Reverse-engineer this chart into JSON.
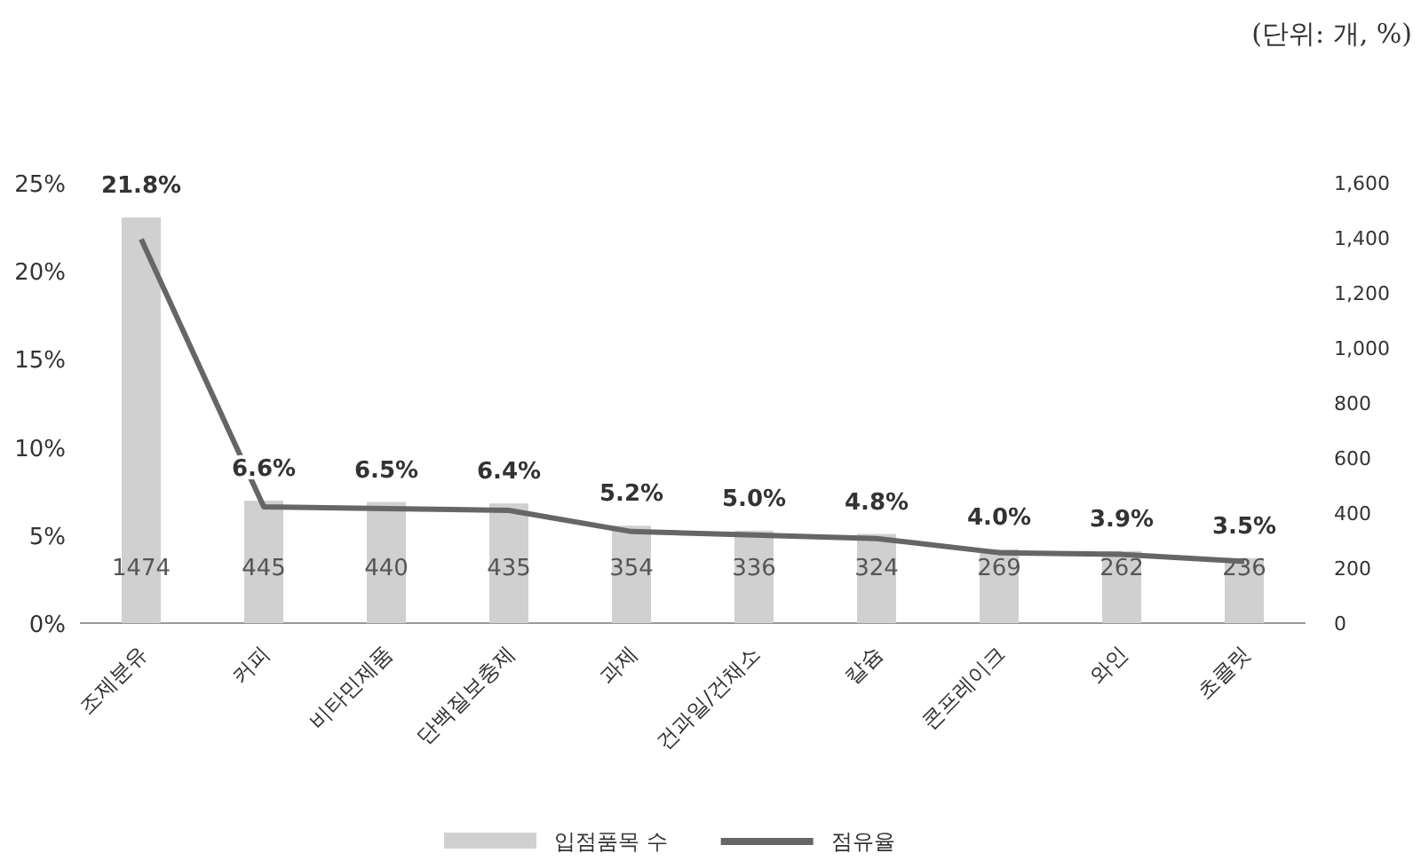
{
  "chart_data": {
    "type": "bar",
    "categories": [
      "조제분유",
      "커피",
      "비타민제품",
      "단백질보충제",
      "과제",
      "건과일/건채소",
      "칼슘",
      "콘프레이크",
      "와인",
      "초콜릿"
    ],
    "series": [
      {
        "name": "입점품목 수",
        "axis": "y2",
        "color": "#d0d0d0",
        "values": [
          1474,
          445,
          440,
          435,
          354,
          336,
          324,
          269,
          262,
          236
        ],
        "value_labels": [
          "1474",
          "445",
          "440",
          "435",
          "354",
          "336",
          "324",
          "269",
          "262",
          "236"
        ]
      },
      {
        "name": "점유율",
        "type": "line",
        "color": "#666666",
        "values": [
          21.8,
          6.6,
          6.5,
          6.4,
          5.2,
          5.0,
          4.8,
          4.0,
          3.9,
          3.5
        ],
        "value_labels": [
          "21.8%",
          "6.6%",
          "6.5%",
          "6.4%",
          "5.2%",
          "5.0%",
          "4.8%",
          "4.0%",
          "3.9%",
          "3.5%"
        ]
      }
    ],
    "ylim": [
      0,
      25
    ],
    "yticks": [
      {
        "value": 0,
        "label": "0%"
      },
      {
        "value": 5,
        "label": "5%"
      },
      {
        "value": 10,
        "label": "10%"
      },
      {
        "value": 15,
        "label": "15%"
      },
      {
        "value": 20,
        "label": "20%"
      },
      {
        "value": 25,
        "label": "25%"
      }
    ],
    "y2lim": [
      0,
      1600
    ],
    "y2ticks": [
      0,
      200,
      400,
      600,
      800,
      {
        "value": 1000,
        "label": "1,000"
      },
      {
        "value": 1200,
        "label": "1,200"
      },
      {
        "value": 1400,
        "label": "1,400"
      },
      {
        "value": 1600,
        "label": "1,600"
      }
    ],
    "legend": "bottom",
    "marker": "none",
    "line_style": "solid",
    "grid": false,
    "annotations": [
      "(단위: 개, %)"
    ]
  }
}
